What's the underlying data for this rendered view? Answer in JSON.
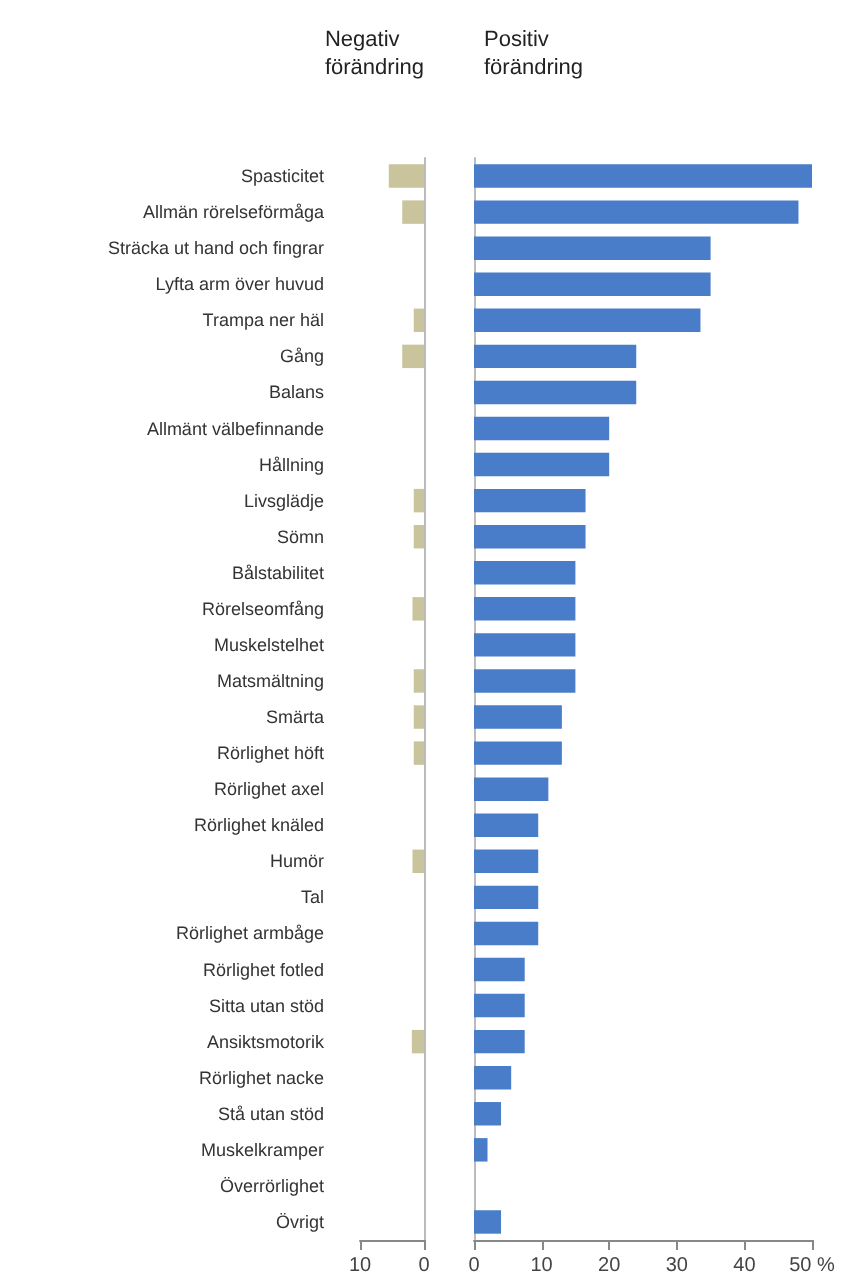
{
  "chart_data": [
    {
      "type": "bar",
      "orientation": "horizontal",
      "title": "Negativ förändring",
      "color": "#c9c49c",
      "categories": [
        "Spasticitet",
        "Allmän rörelseförmåga",
        "Sträcka ut hand och fingrar",
        "Lyfta arm över huvud",
        "Trampa ner häl",
        "Gång",
        "Balans",
        "Allmänt välbefinnande",
        "Hållning",
        "Livsglädje",
        "Sömn",
        "Bålstabilitet",
        "Rörelseomfång",
        "Muskelstelhet",
        "Matsmältning",
        "Smärta",
        "Rörlighet höft",
        "Rörlighet axel",
        "Rörlighet knäled",
        "Humör",
        "Tal",
        "Rörlighet armbåge",
        "Rörlighet fotled",
        "Sitta utan stöd",
        "Ansiktsmotorik",
        "Rörlighet nacke",
        "Stå utan stöd",
        "Muskelkramper",
        "Överrörlighet",
        "Övrigt"
      ],
      "values": [
        5.5,
        3.4,
        0,
        0,
        1.6,
        3.4,
        0,
        0,
        0,
        1.6,
        1.6,
        0,
        1.8,
        0,
        1.6,
        1.6,
        1.6,
        0,
        0,
        1.8,
        0,
        0,
        0,
        0,
        1.9,
        0,
        0,
        0,
        0,
        0
      ],
      "xlim": [
        10,
        0
      ],
      "xticks": [
        10,
        0
      ],
      "grid": false
    },
    {
      "type": "bar",
      "orientation": "horizontal",
      "title": "Positiv förändring",
      "color": "#4a7dc9",
      "tick_labels": "x",
      "categories": [
        null,
        null,
        null,
        null,
        null,
        null,
        null,
        null,
        null,
        null,
        null,
        null,
        null,
        null,
        null,
        null,
        null,
        null,
        null,
        null,
        null,
        null,
        null,
        null,
        null,
        null,
        null,
        null,
        null,
        null
      ],
      "values": [
        50,
        48,
        35,
        35,
        33.5,
        24,
        24,
        20,
        20,
        16.5,
        16.5,
        15,
        15,
        15,
        15,
        13,
        13,
        11,
        9.5,
        9.5,
        9.5,
        9.5,
        7.5,
        7.5,
        7.5,
        5.5,
        4,
        2,
        0,
        4
      ],
      "xlim": [
        0,
        50
      ],
      "xticks": [
        0,
        10,
        20,
        30,
        40,
        {
          "value": 50,
          "label": "50 %"
        }
      ],
      "grid": false
    }
  ]
}
